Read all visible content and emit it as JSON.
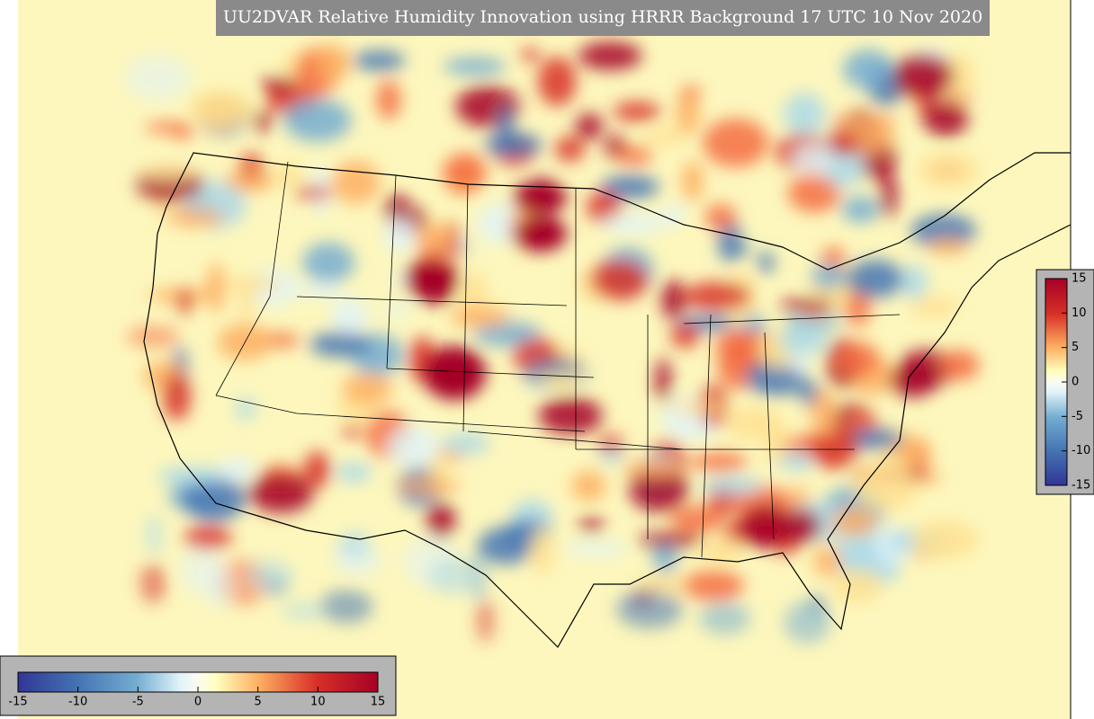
{
  "title": "UU2DVAR Relative Humidity Innovation using HRRR Background 17 UTC 10 Nov 2020",
  "colorbar_right": {
    "ticks": [
      15,
      10,
      5,
      0,
      -5,
      -10,
      -15
    ]
  },
  "colorbar_bottom": {
    "ticks": [
      -15,
      -10,
      -5,
      0,
      5,
      10,
      15
    ]
  }
}
